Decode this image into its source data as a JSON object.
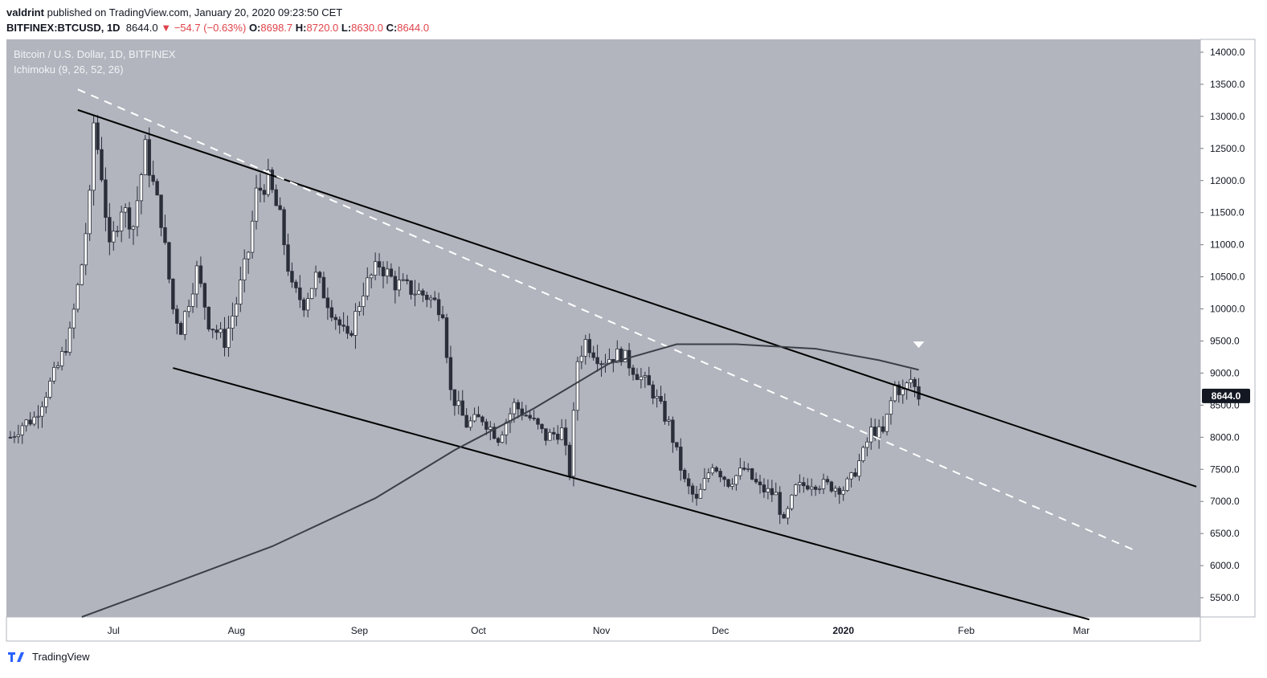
{
  "header": {
    "author": "valdrint",
    "published_text": "published on TradingView.com, January 20, 2020 09:23:50 CET",
    "symbol": "BITFINEX:BTCUSD, 1D",
    "last": "8644.0",
    "change": "−54.7 (−0.63%)",
    "o_label": "O:",
    "o_val": "8698.7",
    "h_label": "H:",
    "h_val": "8720.0",
    "l_label": "L:",
    "l_val": "8630.0",
    "c_label": "C:",
    "c_val": "8644.0"
  },
  "legend": {
    "title": "Bitcoin / U.S. Dollar, 1D, BITFINEX",
    "indicator": "Ichimoku (9, 26, 52, 26)"
  },
  "footer": {
    "brand": "TradingView"
  },
  "colors": {
    "background": "#b2b5be",
    "candle": "#2a2e39",
    "up_body": "#ffffff",
    "trendline": "#000000",
    "dashed": "#ffffff",
    "ma_line": "#3b3f47",
    "price_tag": "#131722"
  },
  "chart_data": {
    "type": "candlestick",
    "title": "Bitcoin / U.S. Dollar, 1D, BITFINEX",
    "x_ticks": [
      "Jul",
      "Aug",
      "Sep",
      "Oct",
      "Nov",
      "Dec",
      "2020",
      "Feb",
      "Mar"
    ],
    "x_tick_dates": [
      "2019-07-01",
      "2019-08-01",
      "2019-09-01",
      "2019-10-01",
      "2019-11-01",
      "2019-12-01",
      "2020-01-01",
      "2020-02-01",
      "2020-03-01"
    ],
    "y_ticks": [
      "5500.0",
      "6000.0",
      "6500.0",
      "7000.0",
      "7500.0",
      "8000.0",
      "8500.0",
      "9000.0",
      "9500.0",
      "10000.0",
      "10500.0",
      "11000.0",
      "11500.0",
      "12000.0",
      "12500.0",
      "13000.0",
      "13500.0",
      "14000.0"
    ],
    "y_range": [
      5200,
      14200
    ],
    "x_range": [
      "2019-06-04",
      "2020-03-31"
    ],
    "current_price": {
      "label": "8644.0",
      "value": 8644
    },
    "closes": [
      [
        "2019-06-05",
        8000
      ],
      [
        "2019-06-08",
        8200
      ],
      [
        "2019-06-11",
        8300
      ],
      [
        "2019-06-14",
        8700
      ],
      [
        "2019-06-17",
        9100
      ],
      [
        "2019-06-20",
        9600
      ],
      [
        "2019-06-23",
        10700
      ],
      [
        "2019-06-25",
        11700
      ],
      [
        "2019-06-26",
        12900
      ],
      [
        "2019-06-28",
        12100
      ],
      [
        "2019-06-30",
        10900
      ],
      [
        "2019-07-03",
        11600
      ],
      [
        "2019-07-06",
        11300
      ],
      [
        "2019-07-09",
        12500
      ],
      [
        "2019-07-10",
        12200
      ],
      [
        "2019-07-13",
        11400
      ],
      [
        "2019-07-16",
        10000
      ],
      [
        "2019-07-18",
        9700
      ],
      [
        "2019-07-22",
        10600
      ],
      [
        "2019-07-25",
        9800
      ],
      [
        "2019-07-29",
        9500
      ],
      [
        "2019-08-01",
        10100
      ],
      [
        "2019-08-04",
        10900
      ],
      [
        "2019-08-06",
        11800
      ],
      [
        "2019-08-09",
        12000
      ],
      [
        "2019-08-12",
        11400
      ],
      [
        "2019-08-15",
        10300
      ],
      [
        "2019-08-18",
        10100
      ],
      [
        "2019-08-21",
        10500
      ],
      [
        "2019-08-25",
        10000
      ],
      [
        "2019-08-29",
        9500
      ],
      [
        "2019-09-02",
        10300
      ],
      [
        "2019-09-06",
        10700
      ],
      [
        "2019-09-10",
        10400
      ],
      [
        "2019-09-14",
        10300
      ],
      [
        "2019-09-18",
        10200
      ],
      [
        "2019-09-22",
        10000
      ],
      [
        "2019-09-24",
        8700
      ],
      [
        "2019-09-28",
        8200
      ],
      [
        "2019-10-02",
        8300
      ],
      [
        "2019-10-06",
        8000
      ],
      [
        "2019-10-10",
        8500
      ],
      [
        "2019-10-14",
        8300
      ],
      [
        "2019-10-18",
        8000
      ],
      [
        "2019-10-22",
        8100
      ],
      [
        "2019-10-24",
        7450
      ],
      [
        "2019-10-26",
        9200
      ],
      [
        "2019-10-28",
        9500
      ],
      [
        "2019-11-01",
        9200
      ],
      [
        "2019-11-06",
        9300
      ],
      [
        "2019-11-10",
        9000
      ],
      [
        "2019-11-14",
        8700
      ],
      [
        "2019-11-18",
        8200
      ],
      [
        "2019-11-22",
        7300
      ],
      [
        "2019-11-25",
        7000
      ],
      [
        "2019-11-29",
        7600
      ],
      [
        "2019-12-03",
        7300
      ],
      [
        "2019-12-07",
        7500
      ],
      [
        "2019-12-11",
        7200
      ],
      [
        "2019-12-15",
        7100
      ],
      [
        "2019-12-17",
        6650
      ],
      [
        "2019-12-20",
        7200
      ],
      [
        "2019-12-24",
        7300
      ],
      [
        "2019-12-28",
        7250
      ],
      [
        "2020-01-01",
        7200
      ],
      [
        "2020-01-03",
        7350
      ],
      [
        "2020-01-06",
        7750
      ],
      [
        "2020-01-08",
        8100
      ],
      [
        "2020-01-11",
        8050
      ],
      [
        "2020-01-14",
        8800
      ],
      [
        "2020-01-16",
        8700
      ],
      [
        "2020-01-18",
        8900
      ],
      [
        "2020-01-20",
        8644
      ]
    ],
    "trendlines": [
      {
        "name": "upper",
        "style": "solid",
        "points": [
          [
            "2019-06-22",
            13100
          ],
          [
            "2020-03-30",
            7230
          ]
        ]
      },
      {
        "name": "lower",
        "style": "solid",
        "points": [
          [
            "2019-07-16",
            9080
          ],
          [
            "2020-03-03",
            5160
          ]
        ]
      },
      {
        "name": "middle",
        "style": "dashed",
        "points": [
          [
            "2019-06-22",
            13420
          ],
          [
            "2020-03-14",
            6250
          ]
        ]
      }
    ],
    "moving_average": [
      [
        "2019-06-23",
        5200
      ],
      [
        "2019-07-15",
        5700
      ],
      [
        "2019-08-10",
        6300
      ],
      [
        "2019-09-05",
        7050
      ],
      [
        "2019-09-25",
        7800
      ],
      [
        "2019-10-15",
        8450
      ],
      [
        "2019-11-03",
        9150
      ],
      [
        "2019-11-20",
        9450
      ],
      [
        "2019-12-05",
        9450
      ],
      [
        "2019-12-25",
        9380
      ],
      [
        "2020-01-10",
        9200
      ],
      [
        "2020-01-20",
        9050
      ]
    ],
    "markers": [
      {
        "date": "2020-01-20",
        "value": 9430,
        "shape": "down-triangle"
      }
    ]
  }
}
